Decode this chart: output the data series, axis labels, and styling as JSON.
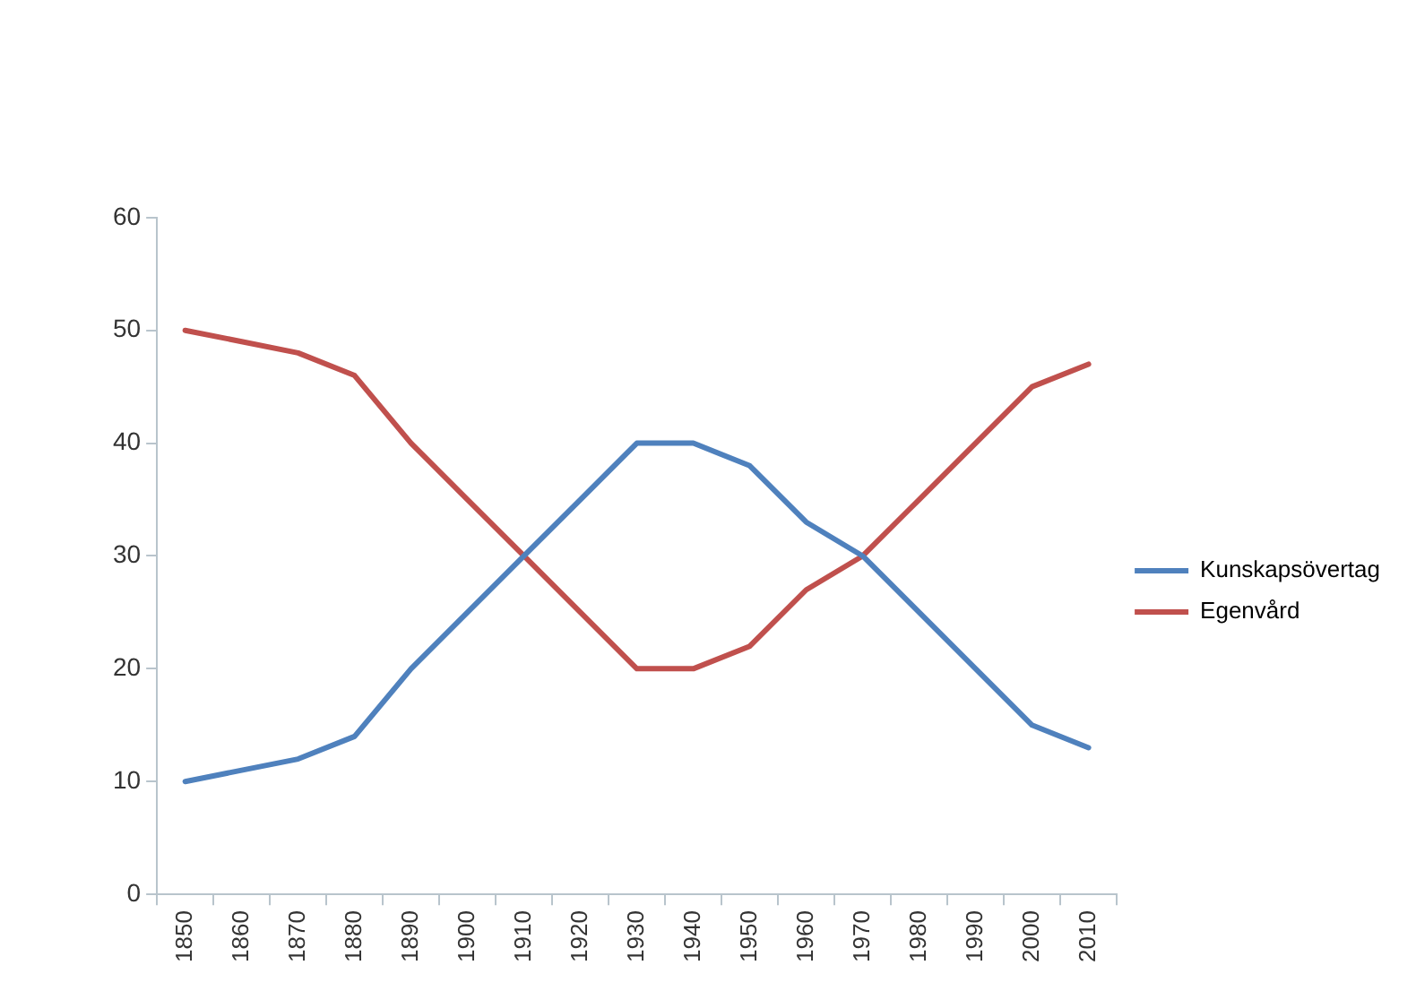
{
  "chart_data": {
    "type": "line",
    "categories": [
      "1850",
      "1860",
      "1870",
      "1880",
      "1890",
      "1900",
      "1910",
      "1920",
      "1930",
      "1940",
      "1950",
      "1960",
      "1970",
      "1980",
      "1990",
      "2000",
      "2010"
    ],
    "series": [
      {
        "name": "Kunskapsövertag",
        "color": "#4f81bd",
        "values": [
          10,
          11,
          12,
          14,
          20,
          25,
          30,
          35,
          40,
          40,
          38,
          33,
          30,
          25,
          20,
          15,
          13
        ]
      },
      {
        "name": "Egenvård",
        "color": "#c0504d",
        "values": [
          50,
          49,
          48,
          46,
          40,
          35,
          30,
          25,
          20,
          20,
          22,
          27,
          30,
          35,
          40,
          45,
          47
        ]
      }
    ],
    "ylim": [
      0,
      60
    ],
    "yticks": [
      0,
      10,
      20,
      30,
      40,
      50,
      60
    ],
    "grid": false,
    "legend": "right",
    "marker": "none",
    "line_style": "solid"
  }
}
